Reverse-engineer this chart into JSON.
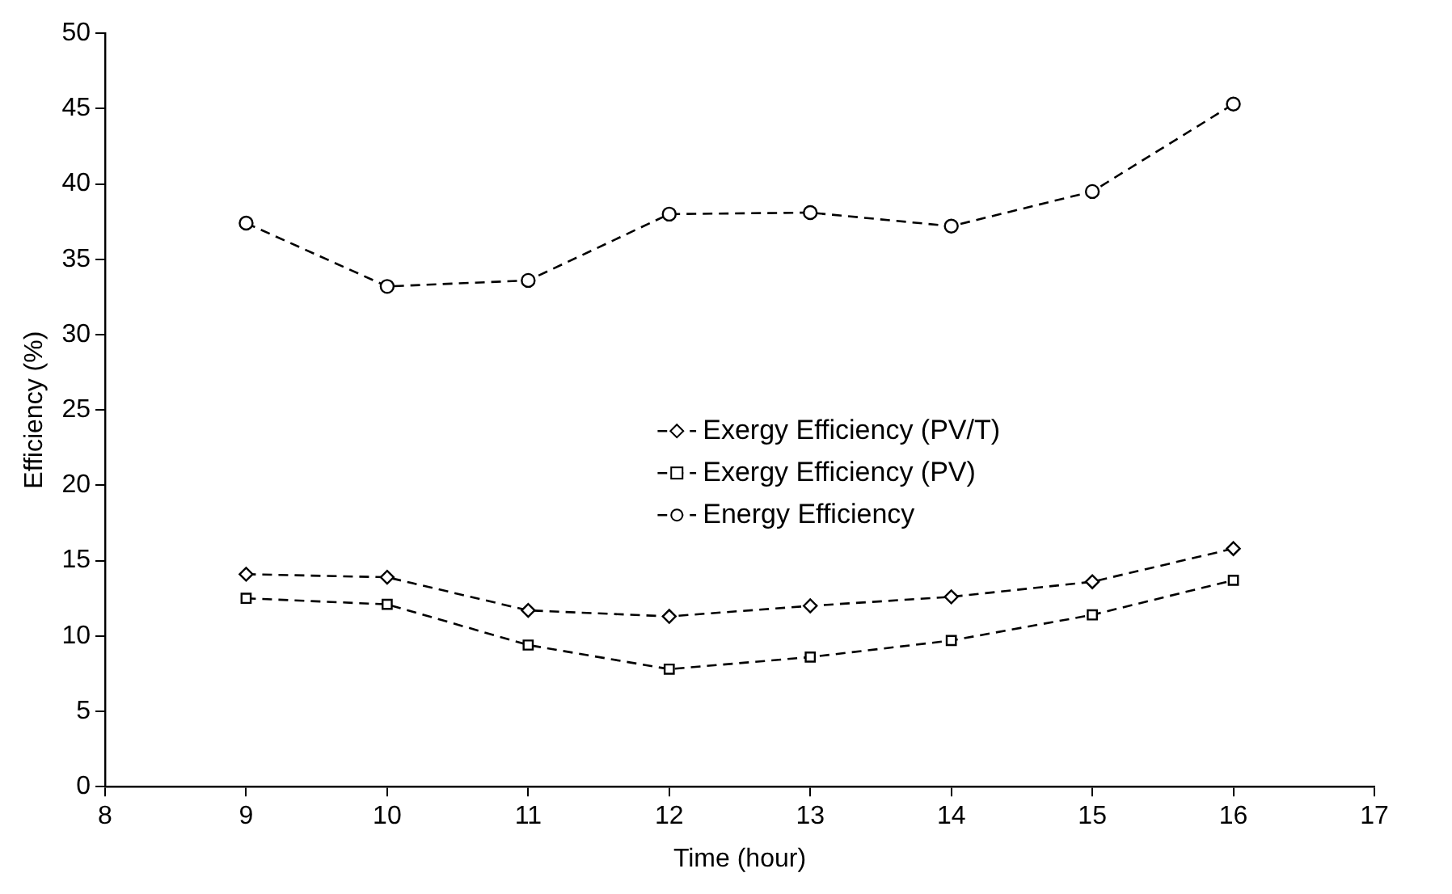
{
  "chart_data": {
    "type": "line",
    "xlabel": "Time (hour)",
    "ylabel": "Efficiency (%)",
    "x": [
      9,
      10,
      11,
      12,
      13,
      14,
      15,
      16
    ],
    "series": [
      {
        "name": "Exergy Efficiency (PV/T)",
        "color": "#000000",
        "marker": "diamond",
        "values": [
          14.1,
          13.9,
          11.7,
          11.3,
          12.0,
          12.6,
          13.6,
          15.8
        ]
      },
      {
        "name": "Exergy Efficiency (PV)",
        "color": "#000000",
        "marker": "square",
        "values": [
          12.5,
          12.1,
          9.4,
          7.8,
          8.6,
          9.7,
          11.4,
          13.7
        ]
      },
      {
        "name": "Energy Efficiency",
        "color": "#000000",
        "marker": "circle",
        "values": [
          37.4,
          33.2,
          33.6,
          38.0,
          38.1,
          37.2,
          39.5,
          45.3
        ]
      }
    ],
    "xlim": [
      8,
      17
    ],
    "xticks": [
      8,
      9,
      10,
      11,
      12,
      13,
      14,
      15,
      16,
      17
    ],
    "ylim": [
      0,
      50
    ],
    "yticks": [
      0,
      5,
      10,
      15,
      20,
      25,
      30,
      35,
      40,
      45,
      50
    ],
    "grid": false,
    "legend": "center",
    "line_style": "dashed"
  }
}
